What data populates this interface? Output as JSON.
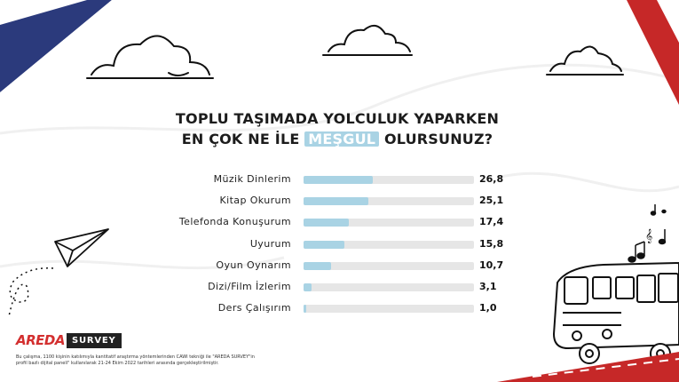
{
  "title": {
    "line1": "TOPLU TAŞIMADA YOLCULUK YAPARKEN",
    "line2_before": "EN ÇOK NE İLE",
    "line2_highlight": "MEŞGUL",
    "line2_after": "OLURSUNUZ?"
  },
  "chart_data": {
    "type": "bar",
    "orientation": "horizontal",
    "categories": [
      "Müzik Dinlerim",
      "Kitap Okurum",
      "Telefonda Konuşurum",
      "Uyurum",
      "Oyun Oynarım",
      "Dizi/Film İzlerim",
      "Ders Çalışırım"
    ],
    "values": [
      26.8,
      25.1,
      17.4,
      15.8,
      10.7,
      3.1,
      1.0
    ],
    "value_labels": [
      "26,8",
      "25,1",
      "17,4",
      "15,8",
      "10,7",
      "3,1",
      "1,0"
    ],
    "xlim": [
      0,
      66
    ],
    "grid": false,
    "colors": {
      "bar": "#a9d3e4",
      "track": "#e6e6e6",
      "text": "#1c1c1c"
    }
  },
  "logo": {
    "brand": "AREDA",
    "tag": "SURVEY"
  },
  "footnote": "Bu çalışma, 1100 kişinin katılımıyla kantitatif araştırma yöntemlerinden CAWI tekniği ile \"AREDA SURVEY\"in profil bazlı dijital paneli\" kullanılarak 21-24 Ekim 2022 tarihleri arasında gerçekleştirilmiştir.",
  "decor": {
    "stripe_left_color": "#2b3a7c",
    "stripe_right_color": "#c62828",
    "icons": [
      "cloud-icon",
      "paper-plane-icon",
      "bus-icon",
      "music-notes-icon"
    ]
  }
}
